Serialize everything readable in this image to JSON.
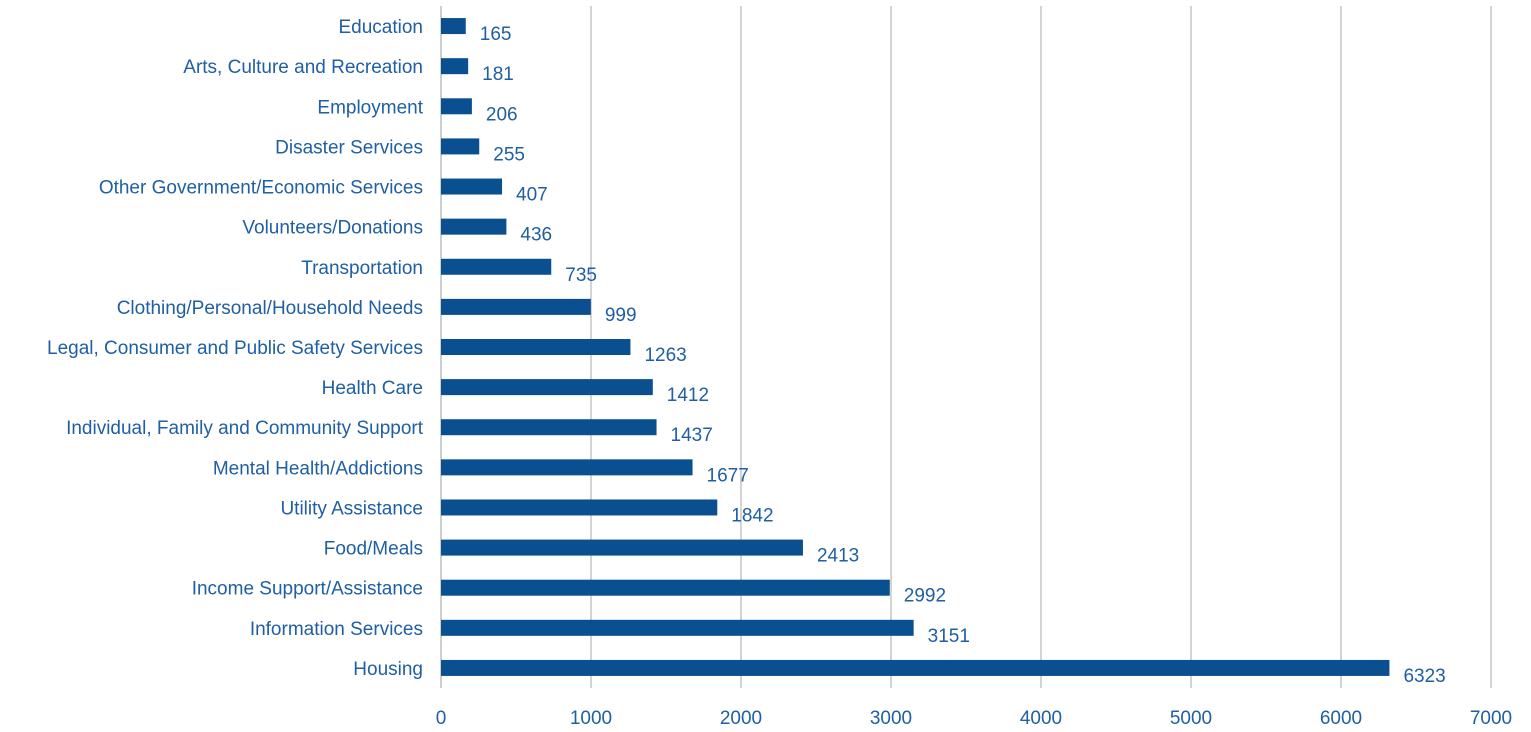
{
  "chart_data": {
    "type": "bar",
    "orientation": "horizontal",
    "title": "",
    "xlabel": "",
    "ylabel": "",
    "categories": [
      "Education",
      "Arts, Culture and Recreation",
      "Employment",
      "Disaster Services",
      "Other Government/Economic Services",
      "Volunteers/Donations",
      "Transportation",
      "Clothing/Personal/Household Needs",
      "Legal, Consumer and Public Safety Services",
      "Health Care",
      "Individual, Family and Community Support",
      "Mental Health/Addictions",
      "Utility Assistance",
      "Food/Meals",
      "Income Support/Assistance",
      "Information Services",
      "Housing"
    ],
    "values": [
      165,
      181,
      206,
      255,
      407,
      436,
      735,
      999,
      1263,
      1412,
      1437,
      1677,
      1842,
      2413,
      2992,
      3151,
      6323
    ],
    "xlim": [
      0,
      7000
    ],
    "xticks": [
      0,
      1000,
      2000,
      3000,
      4000,
      5000,
      6000,
      7000
    ],
    "grid": true,
    "data_labels": true,
    "bar_color": "#0a4f8f",
    "legend": "none"
  }
}
